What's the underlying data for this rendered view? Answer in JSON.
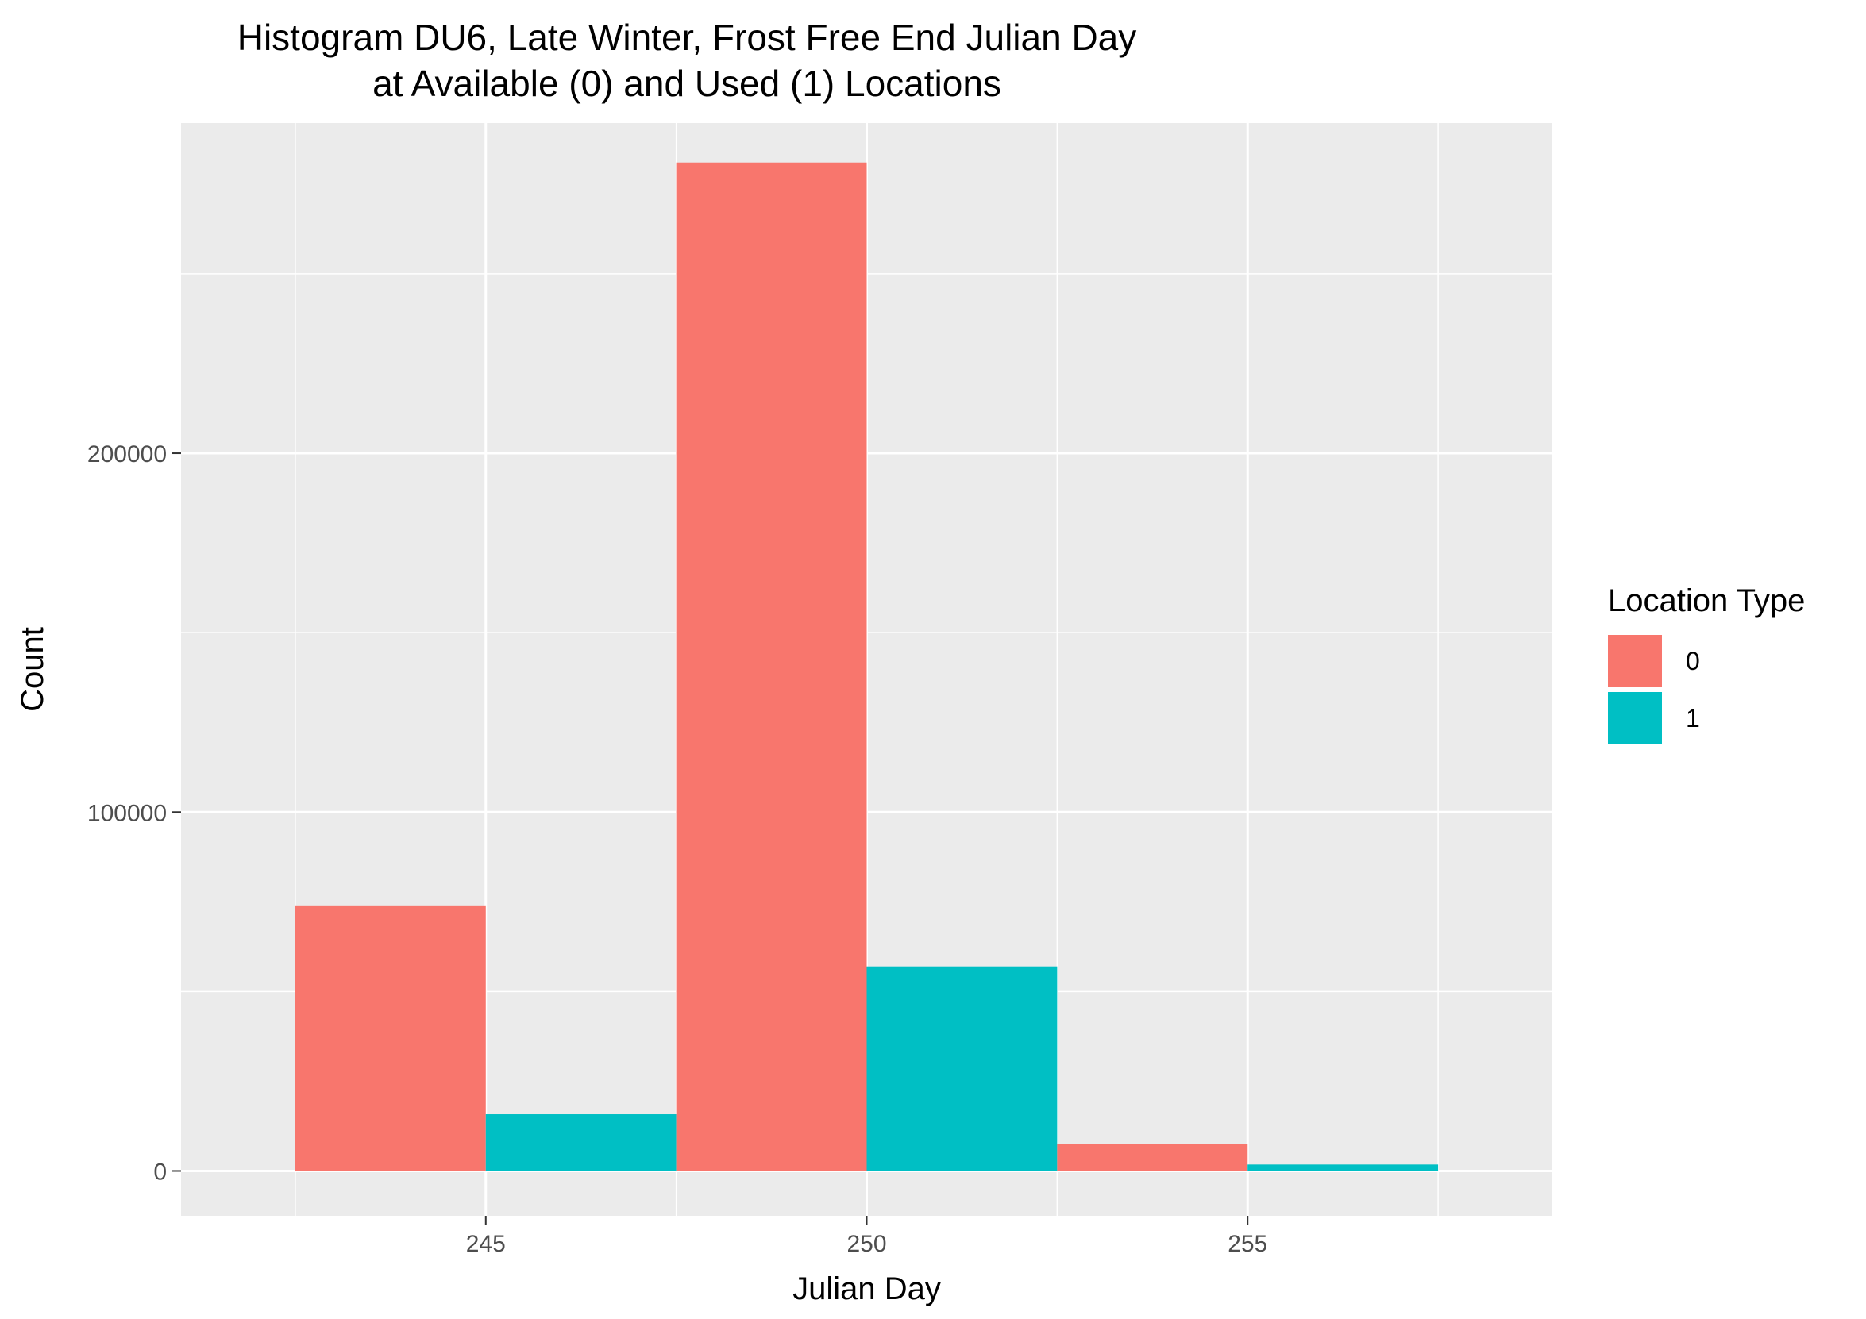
{
  "chart_data": {
    "type": "bar",
    "title_lines": [
      "Histogram DU6, Late Winter, Frost Free End Julian Day",
      "at Available (0) and Used (1) Locations"
    ],
    "xlabel": "Julian Day",
    "ylabel": "Count",
    "bin_width": 5,
    "bins": [
      {
        "from": 242.5,
        "to": 247.5
      },
      {
        "from": 247.5,
        "to": 252.5
      },
      {
        "from": 252.5,
        "to": 257.5
      }
    ],
    "xlim": [
      241,
      259
    ],
    "ylim": [
      -12500,
      292000
    ],
    "x_ticks": [
      245,
      250,
      255
    ],
    "y_ticks": [
      0,
      100000,
      200000
    ],
    "y_minor_ticks": [
      50000,
      150000,
      250000
    ],
    "x_minor_ticks": [
      247.5,
      252.5
    ],
    "series": [
      {
        "name": "0",
        "color": "#F8766D",
        "values": [
          74000,
          281000,
          7500
        ]
      },
      {
        "name": "1",
        "color": "#00BFC4",
        "values": [
          15800,
          57000,
          1800
        ]
      }
    ],
    "legend": {
      "title": "Location Type",
      "position": "right"
    },
    "grid": true,
    "panel_background": "#EBEBEB",
    "grid_color": "#FFFFFF"
  }
}
